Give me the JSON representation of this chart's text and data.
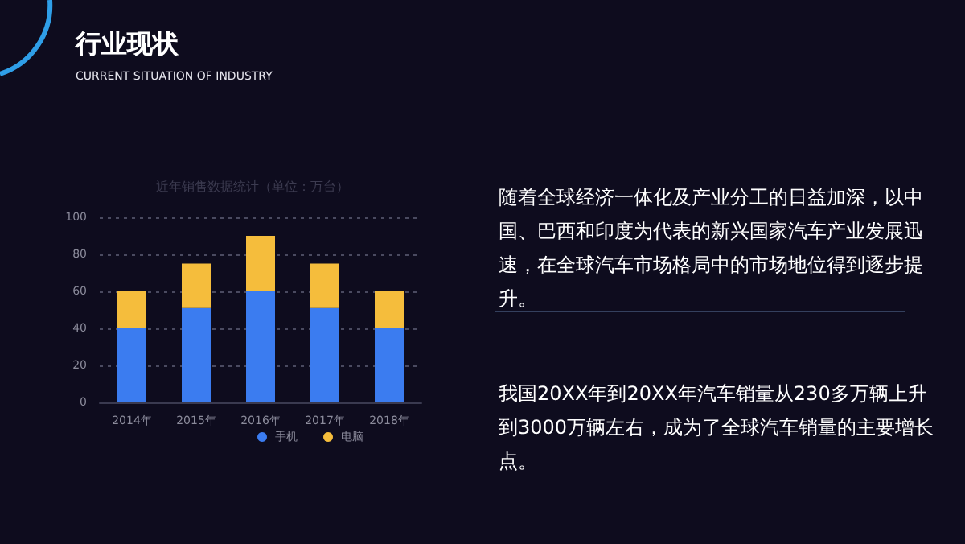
{
  "chart_data": {
    "type": "bar",
    "title": "行业现状",
    "subtitle": "CURRENT SITUATION OF INDUSTRY",
    "xlabel": "近年销售数据统计（单位：万台）",
    "categories": [
      "2014年",
      "2015年",
      "2016年",
      "2017年",
      "2018年"
    ],
    "series": [
      {
        "name": "手机",
        "color": "#3b7cf0",
        "values": [
          40,
          51,
          60,
          51,
          40
        ]
      },
      {
        "name": "电脑",
        "color": "#f5bd3c",
        "values": [
          20,
          24,
          30,
          24,
          20
        ]
      }
    ],
    "stacked": true,
    "ylim": [
      0,
      100
    ],
    "yticks": [
      0,
      20,
      40,
      60,
      80,
      100
    ],
    "grid": "y",
    "legend": "bottom",
    "annotations": [
      "随着全球经济一体化及产业分工的日益加深，以中国、巴西和印度为代表的新兴国家汽车产业发展迅速，在全球汽车市场格局中的市场地位得到逐步提升。",
      "我国20XX年到20XX年汽车销量从230多万辆上升到3000万辆左右，成为了全球汽车销量的主要增长点。"
    ]
  }
}
